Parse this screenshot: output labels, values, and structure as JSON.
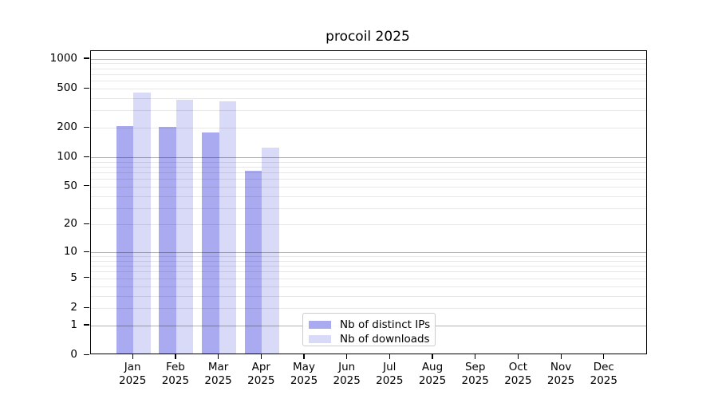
{
  "chart_data": {
    "type": "bar",
    "title": "procoil 2025",
    "x_year": "2025",
    "categories": [
      "Jan",
      "Feb",
      "Mar",
      "Apr",
      "May",
      "Jun",
      "Jul",
      "Aug",
      "Sep",
      "Oct",
      "Nov",
      "Dec"
    ],
    "series": [
      {
        "name": "Nb of distinct IPs",
        "color": "#aaaaf0",
        "values": [
          200,
          196,
          174,
          70,
          0,
          0,
          0,
          0,
          0,
          0,
          0,
          0
        ]
      },
      {
        "name": "Nb of downloads",
        "color": "#d9d9f8",
        "values": [
          440,
          370,
          360,
          120,
          0,
          0,
          0,
          0,
          0,
          0,
          0,
          0
        ]
      }
    ],
    "y_scale": "log1p",
    "y_ticks": [
      0,
      1,
      2,
      5,
      10,
      20,
      50,
      100,
      200,
      500,
      1000
    ],
    "ylim": [
      0,
      1200
    ],
    "grid": {
      "major_values": [
        1,
        10,
        100,
        1000
      ],
      "minor_values": [
        2,
        3,
        4,
        5,
        6,
        7,
        8,
        9,
        20,
        30,
        40,
        50,
        60,
        70,
        80,
        90,
        200,
        300,
        400,
        500,
        600,
        700,
        800,
        900
      ]
    },
    "legend_position": "bottom-center"
  }
}
